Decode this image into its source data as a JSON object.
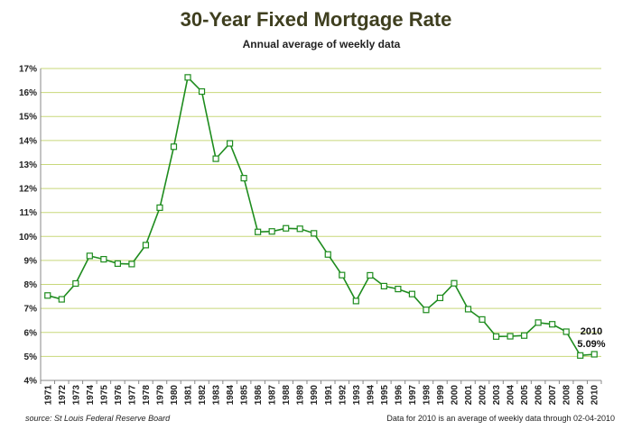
{
  "chart_data": {
    "type": "line",
    "title": "30-Year Fixed Mortgage Rate",
    "subtitle": "Annual average of weekly data",
    "x": [
      "1971",
      "1972",
      "1973",
      "1974",
      "1975",
      "1976",
      "1977",
      "1978",
      "1979",
      "1980",
      "1981",
      "1982",
      "1983",
      "1984",
      "1985",
      "1986",
      "1987",
      "1988",
      "1989",
      "1990",
      "1991",
      "1992",
      "1993",
      "1994",
      "1995",
      "1996",
      "1997",
      "1998",
      "1999",
      "2000",
      "2001",
      "2002",
      "2003",
      "2004",
      "2005",
      "2006",
      "2007",
      "2008",
      "2009",
      "2010"
    ],
    "values": [
      7.54,
      7.38,
      8.04,
      9.19,
      9.05,
      8.87,
      8.85,
      9.64,
      11.2,
      13.74,
      16.63,
      16.04,
      13.24,
      13.88,
      12.43,
      10.19,
      10.21,
      10.34,
      10.32,
      10.13,
      9.25,
      8.39,
      7.31,
      8.38,
      7.93,
      7.81,
      7.6,
      6.94,
      7.44,
      8.05,
      6.97,
      6.54,
      5.83,
      5.84,
      5.87,
      6.41,
      6.34,
      6.03,
      5.04,
      5.09
    ],
    "y_ticks": [
      "4%",
      "5%",
      "6%",
      "7%",
      "8%",
      "9%",
      "10%",
      "11%",
      "12%",
      "13%",
      "14%",
      "15%",
      "16%",
      "17%"
    ],
    "ylim": [
      4,
      17
    ],
    "grid": true,
    "line_color": "#1e8c1e",
    "grid_color": "#c8d87a",
    "annotation": {
      "year": "2010",
      "value": "5.09%"
    },
    "source": "source: St Louis Federal Reserve Board",
    "footnote": "Data for 2010 is an average of weekly data through 02-04-2010"
  }
}
